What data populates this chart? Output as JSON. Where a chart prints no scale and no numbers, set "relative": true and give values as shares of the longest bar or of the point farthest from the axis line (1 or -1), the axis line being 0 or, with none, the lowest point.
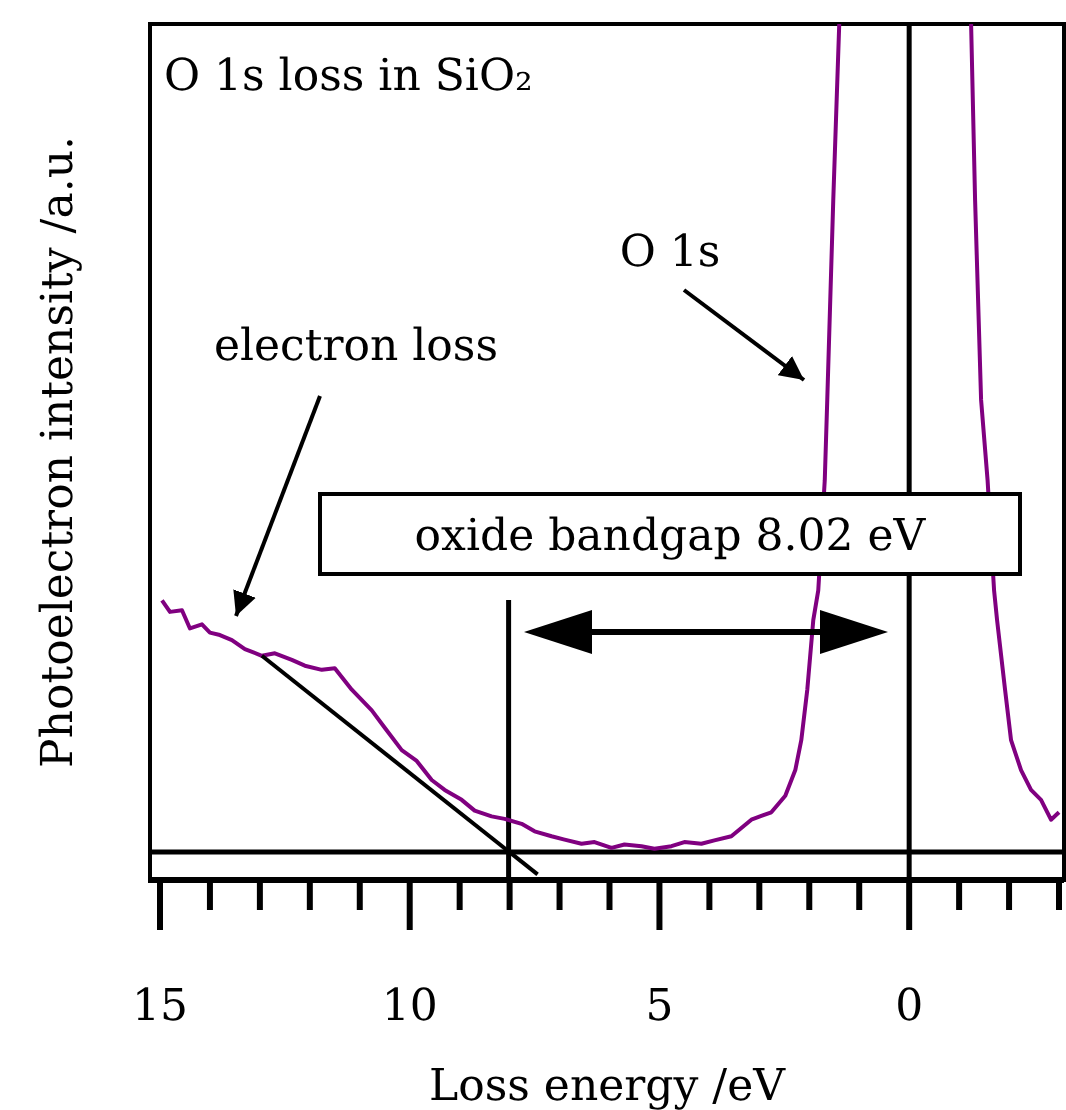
{
  "chart_data": {
    "type": "line",
    "title": "O 1s loss in SiO₂",
    "xlabel": "Loss energy /eV",
    "ylabel": "Photoelectron intensity /a.u.",
    "relative": true,
    "tick_labels": "x",
    "xlim": [
      15.2,
      -3.1
    ],
    "xticks": [
      15,
      {
        "value": 14,
        "label": null
      },
      {
        "value": 13,
        "label": null
      },
      {
        "value": 12,
        "label": null
      },
      {
        "value": 11,
        "label": null
      },
      10,
      {
        "value": 9,
        "label": null
      },
      {
        "value": 8,
        "label": null
      },
      {
        "value": 7,
        "label": null
      },
      {
        "value": 6,
        "label": null
      },
      5,
      {
        "value": 4,
        "label": null
      },
      {
        "value": 3,
        "label": null
      },
      {
        "value": 2,
        "label": null
      },
      {
        "value": 1,
        "label": null
      },
      0,
      {
        "value": -1,
        "label": null
      },
      {
        "value": -2,
        "label": null
      },
      {
        "value": -3,
        "label": null
      }
    ],
    "series": [
      {
        "color": "#800080",
        "x": [
          14.96,
          14.8,
          14.56,
          14.4,
          14.16,
          14.0,
          13.8,
          13.56,
          13.3,
          12.96,
          12.7,
          12.36,
          12.1,
          11.76,
          11.5,
          11.16,
          10.76,
          10.5,
          10.16,
          9.86,
          9.56,
          9.3,
          8.96,
          8.7,
          8.36,
          8.1,
          7.76,
          7.5,
          7.16,
          6.9,
          6.56,
          6.3,
          5.96,
          5.7,
          5.36,
          5.1,
          4.76,
          4.5,
          4.16,
          3.9,
          3.56,
          3.16,
          2.76,
          2.48,
          2.28,
          2.16,
          2.04,
          1.92,
          1.82,
          1.69,
          1.64,
          1.52,
          1.4,
          0.08,
          -1.24,
          -1.32,
          -1.44,
          -1.57,
          -1.7,
          -1.76,
          -1.92,
          -2.04,
          -2.24,
          -2.44,
          -2.64,
          -2.84,
          -3.0
        ],
        "values": [
          0.304,
          0.29,
          0.292,
          0.27,
          0.275,
          0.265,
          0.262,
          0.256,
          0.245,
          0.237,
          0.24,
          0.232,
          0.225,
          0.22,
          0.222,
          0.196,
          0.171,
          0.15,
          0.123,
          0.11,
          0.087,
          0.075,
          0.063,
          0.05,
          0.043,
          0.04,
          0.034,
          0.025,
          0.019,
          0.015,
          0.01,
          0.012,
          0.005,
          0.009,
          0.007,
          0.004,
          0.007,
          0.012,
          0.01,
          0.014,
          0.019,
          0.039,
          0.048,
          0.068,
          0.099,
          0.135,
          0.196,
          0.28,
          0.316,
          0.449,
          0.546,
          0.787,
          1.0,
          null,
          1.0,
          0.787,
          0.546,
          0.449,
          0.316,
          0.28,
          0.196,
          0.135,
          0.099,
          0.075,
          0.063,
          0.039,
          0.048
        ]
      },
      {
        "color": "#000000",
        "x": [
          12.96,
          7.44
        ],
        "values": [
          0.237,
          -0.027
        ]
      }
    ],
    "ref_lines": [
      {
        "axis": "y",
        "value": 0,
        "color": "#000000"
      },
      {
        "axis": "x",
        "value": 0,
        "color": "#000000"
      },
      {
        "axis": "x",
        "value": 8.02,
        "color": "#000000"
      }
    ],
    "annotations": [
      "O 1s",
      "electron loss",
      "oxide bandgap 8.02 eV"
    ]
  }
}
